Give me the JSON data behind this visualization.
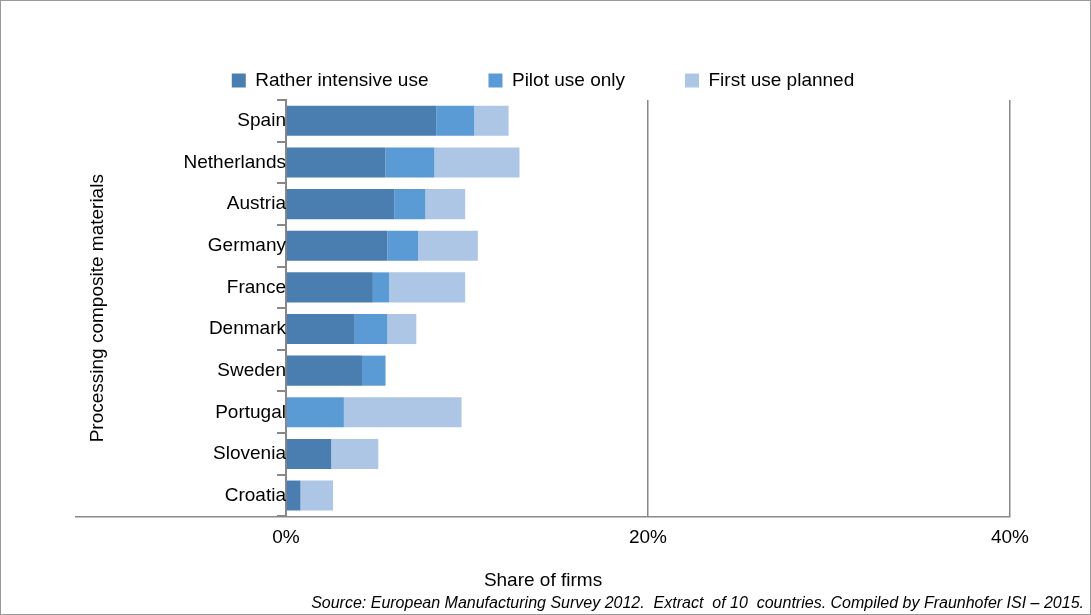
{
  "chart_data": {
    "type": "bar",
    "orientation": "horizontal",
    "stacked": true,
    "categories": [
      "Spain",
      "Netherlands",
      "Austria",
      "Germany",
      "France",
      "Denmark",
      "Sweden",
      "Portugal",
      "Slovenia",
      "Croatia"
    ],
    "series": [
      {
        "name": "Rather intensive use",
        "color": "#4a7eb0",
        "values": [
          8.3,
          5.5,
          6.0,
          5.6,
          4.8,
          3.8,
          4.2,
          0,
          2.5,
          0.8
        ]
      },
      {
        "name": "Pilot use only",
        "color": "#5b9bd5",
        "values": [
          2.1,
          2.7,
          1.7,
          1.7,
          0.9,
          1.8,
          1.3,
          3.2,
          0,
          0
        ]
      },
      {
        "name": "First use planned",
        "color": "#adc6e5",
        "values": [
          1.9,
          4.7,
          2.2,
          3.3,
          4.2,
          1.6,
          0,
          6.5,
          2.6,
          1.8
        ]
      }
    ],
    "xlim": [
      -11.6,
      40
    ],
    "xticks": [
      {
        "value": 0,
        "label": "0%"
      },
      {
        "value": 20,
        "label": "20%"
      },
      {
        "value": 40,
        "label": "40%"
      }
    ],
    "xlabel": "Share of firms",
    "ylabel": "Processing composite materials",
    "grid": "x",
    "legend": "top",
    "annotations": [
      "Source: European Manufacturing Survey 2012.  Extract  of 10  countries. Compiled by Fraunhofer ISI – 2015."
    ]
  }
}
